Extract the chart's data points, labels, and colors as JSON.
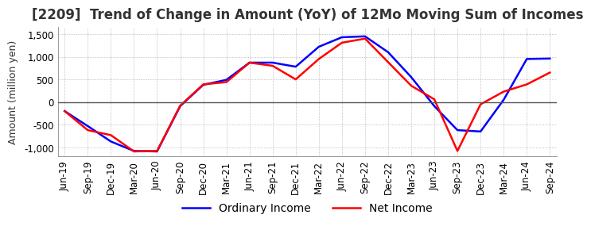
{
  "title": "[2209]  Trend of Change in Amount (YoY) of 12Mo Moving Sum of Incomes",
  "ylabel": "Amount (million yen)",
  "ylim": [
    -1200,
    1650
  ],
  "yticks": [
    -1000,
    -500,
    0,
    500,
    1000,
    1500
  ],
  "x_labels": [
    "Jun-19",
    "Sep-19",
    "Dec-19",
    "Mar-20",
    "Jun-20",
    "Sep-20",
    "Dec-20",
    "Mar-21",
    "Jun-21",
    "Sep-21",
    "Dec-21",
    "Mar-22",
    "Jun-22",
    "Sep-22",
    "Dec-22",
    "Mar-23",
    "Jun-23",
    "Sep-23",
    "Dec-23",
    "Mar-24",
    "Jun-24",
    "Sep-24"
  ],
  "ordinary_income": [
    -200,
    -530,
    -870,
    -1080,
    -1090,
    -90,
    380,
    490,
    870,
    870,
    780,
    1220,
    1430,
    1450,
    1100,
    550,
    -90,
    -620,
    -650,
    50,
    950,
    960
  ],
  "net_income": [
    -200,
    -620,
    -730,
    -1090,
    -1080,
    -80,
    390,
    440,
    870,
    800,
    500,
    950,
    1310,
    1400,
    880,
    360,
    60,
    -1080,
    -50,
    230,
    390,
    650
  ],
  "ordinary_color": "#0000ff",
  "net_color": "#ff0000",
  "grid_color": "#aaaaaa",
  "background_color": "#ffffff",
  "title_fontsize": 12,
  "legend_fontsize": 10,
  "tick_fontsize": 8.5,
  "zeroline_color": "#555555"
}
